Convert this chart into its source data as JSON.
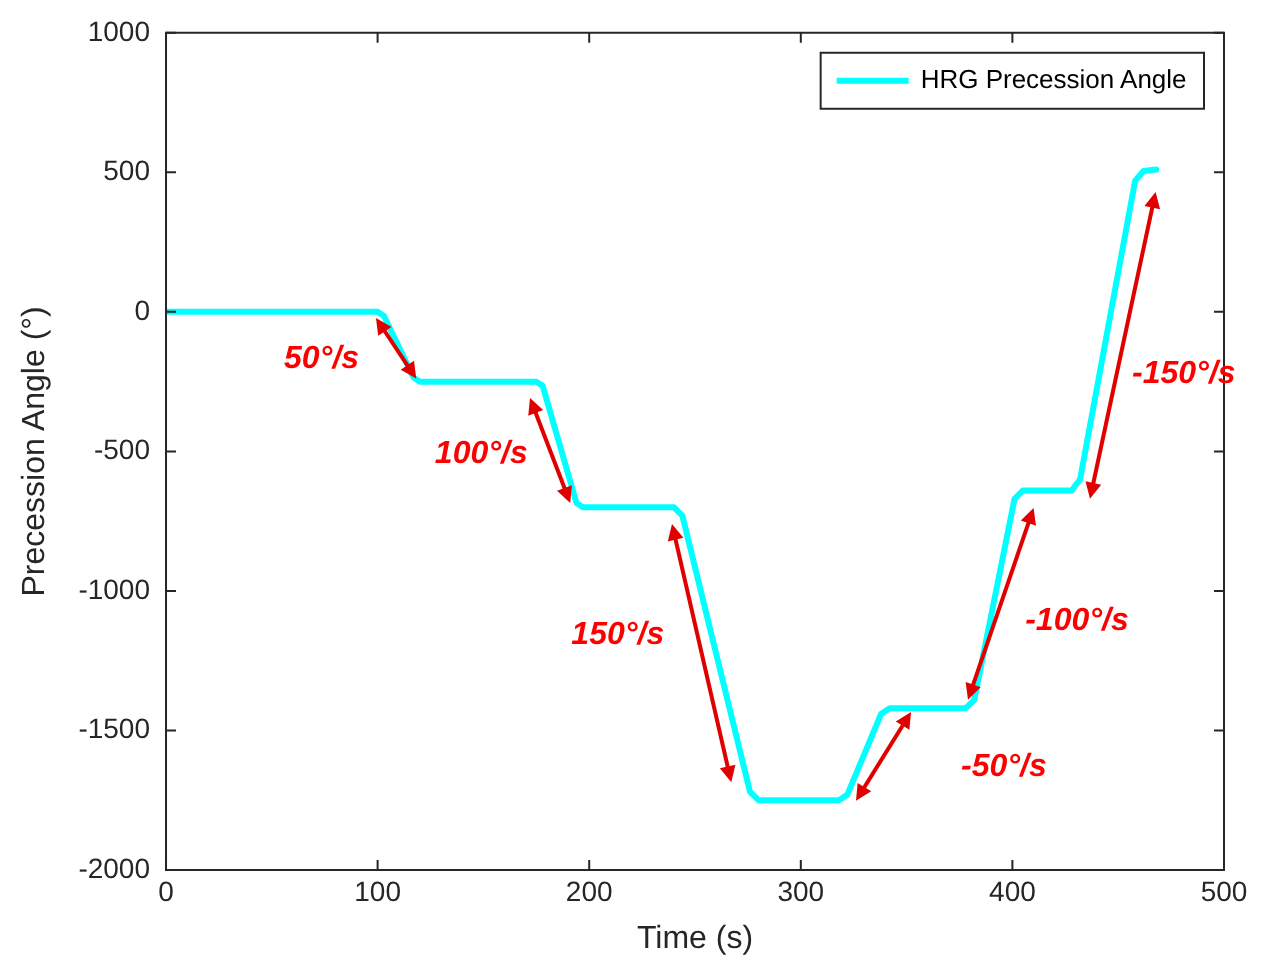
{
  "chart_data": {
    "type": "line",
    "xlabel": "Time (s)",
    "ylabel": "Precession Angle (°)",
    "xlim": [
      0,
      500
    ],
    "xticks": [
      0,
      100,
      200,
      300,
      400,
      500
    ],
    "ylim": [
      -2000,
      1000
    ],
    "yticks": [
      -2000,
      -1500,
      -1000,
      -500,
      0,
      500,
      1000
    ],
    "legend": "top right",
    "grid": false,
    "marker": "none",
    "line_style": "solid",
    "series": [
      {
        "name": "HRG Precession Angle",
        "color": "#00ffff",
        "x": [
          0,
          100,
          103,
          117,
          120,
          175,
          178,
          194,
          197,
          240,
          244,
          276,
          280,
          318,
          322,
          338,
          342,
          378,
          382,
          401,
          405,
          428,
          432,
          458,
          462,
          468
        ],
        "values": [
          0,
          0,
          -15,
          -235,
          -250,
          -250,
          -265,
          -685,
          -700,
          -700,
          -730,
          -1720,
          -1750,
          -1750,
          -1730,
          -1440,
          -1420,
          -1420,
          -1390,
          -670,
          -640,
          -640,
          -600,
          470,
          505,
          510
        ]
      }
    ],
    "annotations": [
      "50°/s",
      "100°/s",
      "150°/s",
      "-50°/s",
      "-100°/s",
      "-150°/s"
    ]
  }
}
